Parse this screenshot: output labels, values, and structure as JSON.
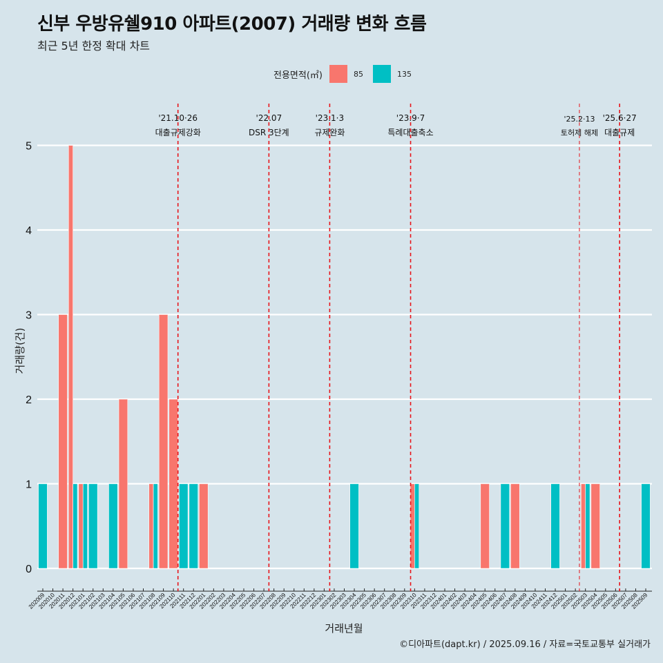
{
  "header": {
    "title": "신부 우방유쉘910 아파트(2007) 거래량 변화 흐름",
    "subtitle": "최근 5년 한정 확대 차트"
  },
  "caption": "©디아파트(dapt.kr) / 2025.09.16 / 자료=국토교통부 실거래가",
  "colors": {
    "s85": "#f8766d",
    "s135": "#00bfc4",
    "event": "#e8141a",
    "background": "#d6e4eb"
  },
  "chart_data": {
    "type": "bar",
    "xlabel": "거래년월",
    "ylabel": "거래량(건)",
    "ylim": [
      0,
      5
    ],
    "yticks": [
      0,
      1,
      2,
      3,
      4,
      5
    ],
    "legend": {
      "title": "전용면적(㎡)",
      "position": "top"
    },
    "categories": [
      "202009",
      "202010",
      "202011",
      "202012",
      "202101",
      "202102",
      "202103",
      "202104",
      "202105",
      "202106",
      "202107",
      "202108",
      "202109",
      "202110",
      "202111",
      "202112",
      "202201",
      "202202",
      "202203",
      "202204",
      "202205",
      "202206",
      "202207",
      "202208",
      "202209",
      "202210",
      "202211",
      "202212",
      "202301",
      "202302",
      "202303",
      "202304",
      "202305",
      "202306",
      "202307",
      "202308",
      "202309",
      "202310",
      "202311",
      "202312",
      "202401",
      "202402",
      "202403",
      "202404",
      "202405",
      "202406",
      "202407",
      "202408",
      "202409",
      "202410",
      "202411",
      "202412",
      "202501",
      "202502",
      "202503",
      "202504",
      "202505",
      "202506",
      "202507",
      "202508",
      "202509"
    ],
    "series": [
      {
        "name": "85",
        "color": "#f8766d",
        "values": [
          0,
          0,
          3,
          5,
          1,
          0,
          0,
          0,
          2,
          0,
          0,
          1,
          3,
          2,
          0,
          0,
          1,
          0,
          0,
          0,
          0,
          0,
          0,
          0,
          0,
          0,
          0,
          0,
          0,
          0,
          0,
          0,
          0,
          0,
          0,
          0,
          0,
          1,
          0,
          0,
          0,
          0,
          0,
          0,
          1,
          0,
          0,
          1,
          0,
          0,
          0,
          0,
          0,
          0,
          1,
          1,
          0,
          0,
          0,
          0,
          0
        ]
      },
      {
        "name": "135",
        "color": "#00bfc4",
        "values": [
          1,
          0,
          0,
          1,
          1,
          1,
          0,
          1,
          0,
          0,
          0,
          1,
          0,
          0,
          1,
          1,
          0,
          0,
          0,
          0,
          0,
          0,
          0,
          0,
          0,
          0,
          0,
          0,
          0,
          0,
          0,
          1,
          0,
          0,
          0,
          0,
          0,
          1,
          0,
          0,
          0,
          0,
          0,
          0,
          0,
          0,
          1,
          0,
          0,
          0,
          0,
          1,
          0,
          0,
          1,
          0,
          0,
          0,
          0,
          0,
          1
        ]
      }
    ],
    "annotations": [
      {
        "x": 13.45,
        "line1": "'21.10·26",
        "line2": "대출규제강화",
        "small": false
      },
      {
        "x": 22.5,
        "line1": "'22.07",
        "line2": "DSR 3단계",
        "small": false
      },
      {
        "x": 28.55,
        "line1": "'23.1·3",
        "line2": "규제완화",
        "small": false
      },
      {
        "x": 36.6,
        "line1": "'23.9·7",
        "line2": "특례대출축소",
        "small": false
      },
      {
        "x": 53.4,
        "line1": "'25.2·13",
        "line2": "토허제 해제",
        "small": true
      },
      {
        "x": 57.4,
        "line1": "'25.6·27",
        "line2": "대출규제",
        "small": false
      }
    ]
  }
}
